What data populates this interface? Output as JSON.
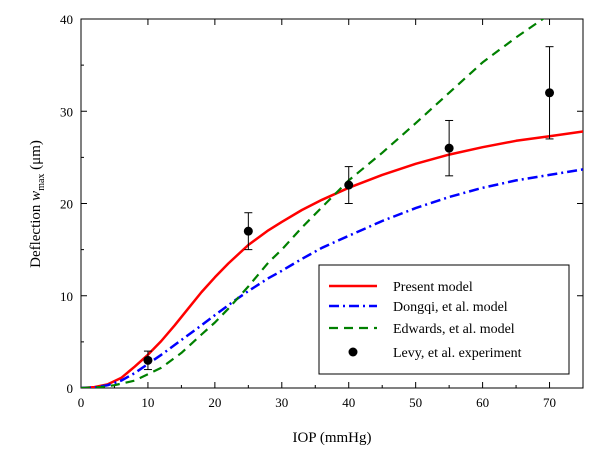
{
  "chart_data": {
    "type": "line",
    "title": "",
    "xlabel": "IOP (mmHg)",
    "ylabel_prefix": "Deflection ",
    "ylabel_var": "w",
    "ylabel_sub": "max",
    "ylabel_unit": " (μm)",
    "xlim": [
      0,
      75
    ],
    "ylim": [
      0,
      40
    ],
    "xticks": [
      0,
      10,
      20,
      30,
      40,
      50,
      60,
      70
    ],
    "yticks": [
      0,
      10,
      20,
      30,
      40
    ],
    "grid": false,
    "legend_position": "bottom-right",
    "series": [
      {
        "name": "Present model",
        "style": "solid",
        "color": "#ff0000",
        "x": [
          0,
          2,
          4,
          6,
          8,
          10,
          12,
          14,
          16,
          18,
          20,
          22,
          25,
          28,
          30,
          33,
          36,
          40,
          45,
          50,
          55,
          60,
          65,
          70,
          75
        ],
        "y": [
          0,
          0.1,
          0.4,
          1.1,
          2.3,
          3.6,
          5.1,
          6.8,
          8.6,
          10.4,
          12.0,
          13.5,
          15.5,
          17.1,
          18.0,
          19.3,
          20.4,
          21.7,
          23.1,
          24.3,
          25.3,
          26.1,
          26.8,
          27.3,
          27.8
        ]
      },
      {
        "name": "Dongqi, et al. model",
        "style": "dashdot",
        "color": "#0000ff",
        "x": [
          0,
          2,
          4,
          6,
          8,
          10,
          12,
          15,
          18,
          20,
          23,
          25,
          28,
          30,
          33,
          36,
          40,
          45,
          50,
          55,
          60,
          65,
          70,
          75
        ],
        "y": [
          0,
          0.05,
          0.3,
          0.8,
          1.6,
          2.6,
          3.6,
          5.2,
          6.8,
          7.9,
          9.5,
          10.5,
          11.9,
          12.7,
          14.0,
          15.2,
          16.5,
          18.1,
          19.5,
          20.7,
          21.7,
          22.5,
          23.1,
          23.7
        ]
      },
      {
        "name": "Edwards, et al. model",
        "style": "dashed",
        "color": "#008000",
        "x": [
          0,
          3,
          5,
          8,
          10,
          12,
          15,
          18,
          20,
          22,
          25,
          28,
          30,
          33,
          36,
          40,
          45,
          50,
          55,
          60,
          65,
          70
        ],
        "y": [
          0,
          0.1,
          0.3,
          0.8,
          1.5,
          2.2,
          3.8,
          5.8,
          7.1,
          8.6,
          11.0,
          13.6,
          15.0,
          17.4,
          19.6,
          22.5,
          25.5,
          28.7,
          32.0,
          35.3,
          38.0,
          40.5
        ]
      }
    ],
    "experiment": {
      "name": "Levy, et al. experiment",
      "color": "#000000",
      "x": [
        10,
        25,
        40,
        55,
        70
      ],
      "y": [
        3,
        17,
        22,
        26,
        32
      ],
      "err": [
        1,
        2,
        2,
        3,
        5
      ]
    }
  }
}
